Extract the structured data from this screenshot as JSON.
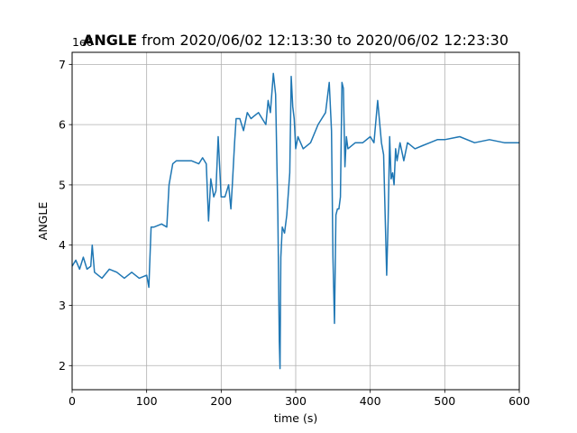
{
  "chart_data": {
    "type": "line",
    "title_bold": "ANGLE",
    "title_rest": " from 2020/06/02 12:13:30 to 2020/06/02 12:23:30",
    "xlabel": "time (s)",
    "ylabel": "ANGLE",
    "offset_text": "1e6",
    "xlim": [
      0,
      600
    ],
    "ylim": [
      1.6,
      7.2
    ],
    "xticks": [
      0,
      100,
      200,
      300,
      400,
      500,
      600
    ],
    "yticks": [
      2,
      3,
      4,
      5,
      6,
      7
    ],
    "grid": true,
    "line_color": "#1f77b4",
    "series": [
      {
        "x": [
          0,
          5,
          10,
          15,
          20,
          25,
          27,
          30,
          40,
          50,
          60,
          70,
          80,
          90,
          100,
          103,
          106,
          110,
          120,
          127,
          130,
          135,
          140,
          150,
          160,
          170,
          175,
          180,
          183,
          186,
          190,
          193,
          196,
          200,
          205,
          210,
          213,
          215,
          218,
          220,
          225,
          230,
          235,
          240,
          245,
          250,
          255,
          260,
          263,
          266,
          270,
          273,
          276,
          278,
          279,
          280,
          282,
          285,
          288,
          292,
          294,
          296,
          298,
          300,
          303,
          310,
          320,
          330,
          340,
          345,
          348,
          350,
          352,
          354,
          356,
          358,
          360,
          362,
          364,
          366,
          368,
          370,
          380,
          390,
          400,
          405,
          410,
          415,
          418,
          420,
          422,
          424,
          426,
          428,
          430,
          432,
          434,
          436,
          440,
          445,
          450,
          460,
          470,
          480,
          490,
          500,
          520,
          540,
          560,
          580,
          600
        ],
        "y": [
          3.65,
          3.75,
          3.6,
          3.8,
          3.6,
          3.65,
          4.0,
          3.55,
          3.45,
          3.6,
          3.55,
          3.45,
          3.55,
          3.45,
          3.5,
          3.3,
          4.3,
          4.3,
          4.35,
          4.3,
          5.0,
          5.35,
          5.4,
          5.4,
          5.4,
          5.35,
          5.45,
          5.35,
          4.4,
          5.1,
          4.8,
          4.9,
          5.8,
          4.8,
          4.8,
          5.0,
          4.6,
          5.0,
          5.7,
          6.1,
          6.1,
          5.9,
          6.2,
          6.1,
          6.15,
          6.2,
          6.1,
          6.0,
          6.4,
          6.2,
          6.85,
          6.5,
          4.5,
          2.4,
          1.95,
          3.8,
          4.3,
          4.2,
          4.5,
          5.2,
          6.8,
          6.3,
          6.1,
          5.6,
          5.8,
          5.6,
          5.7,
          6.0,
          6.2,
          6.7,
          5.9,
          3.8,
          2.7,
          4.5,
          4.6,
          4.6,
          4.8,
          6.7,
          6.6,
          5.3,
          5.8,
          5.6,
          5.7,
          5.7,
          5.8,
          5.7,
          6.4,
          5.7,
          5.5,
          4.5,
          3.5,
          4.4,
          5.8,
          5.1,
          5.2,
          5.0,
          5.6,
          5.4,
          5.7,
          5.4,
          5.7,
          5.6,
          5.65,
          5.7,
          5.75,
          5.75,
          5.8,
          5.7,
          5.75,
          5.7,
          5.7
        ]
      }
    ]
  }
}
